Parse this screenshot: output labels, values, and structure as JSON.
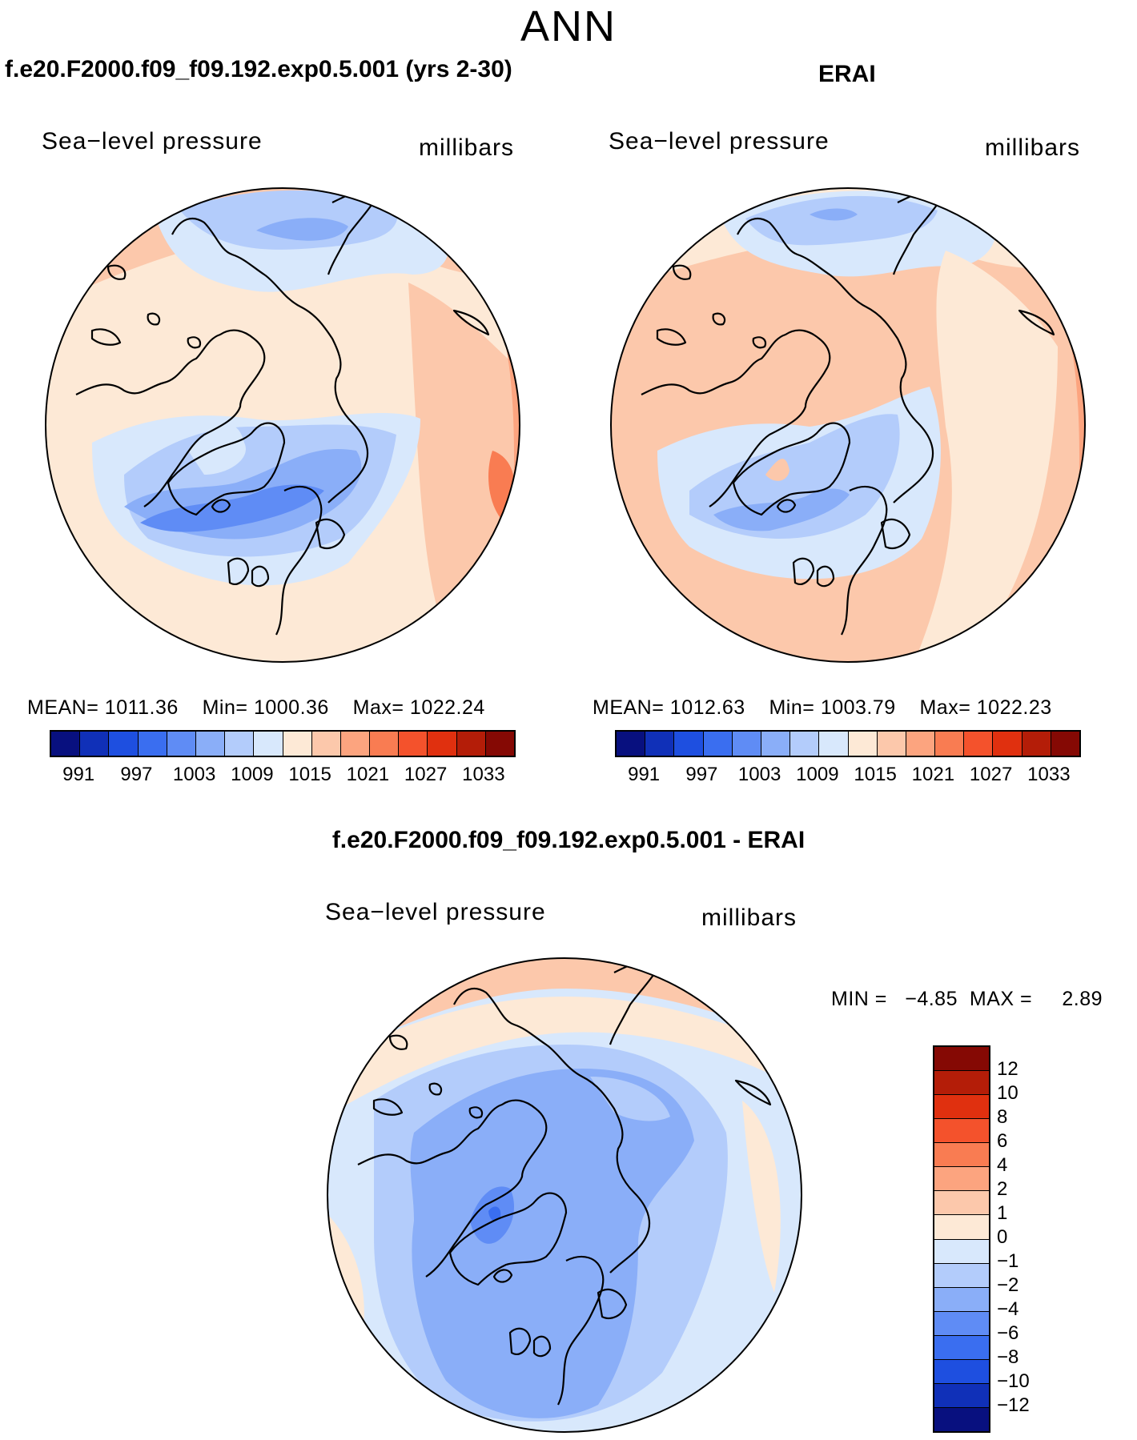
{
  "page": {
    "season": "ANN"
  },
  "panels": [
    {
      "id": "model",
      "title": "f.e20.F2000.f09_f09.192.exp0.5.001 (yrs 2-30)",
      "variable": "Sea−level pressure",
      "units": "millibars",
      "stats": {
        "mean_label": "MEAN=",
        "mean": "1011.36",
        "min_label": "Min=",
        "min": "1000.36",
        "max_label": "Max=",
        "max": "1022.24"
      }
    },
    {
      "id": "obs",
      "title": "ERAI",
      "variable": "Sea−level pressure",
      "units": "millibars",
      "stats": {
        "mean_label": "MEAN=",
        "mean": "1012.63",
        "min_label": "Min=",
        "min": "1003.79",
        "max_label": "Max=",
        "max": "1022.23"
      }
    },
    {
      "id": "diff",
      "title": "f.e20.F2000.f09_f09.192.exp0.5.001 - ERAI",
      "variable": "Sea−level pressure",
      "units": "millibars",
      "stats": {
        "min_label": "MIN =",
        "min": "−4.85",
        "max_label": "MAX =",
        "max": "2.89"
      }
    }
  ],
  "colorbar_abs": {
    "colors": [
      "#08107f",
      "#1030b8",
      "#1e4fe0",
      "#3a6ef0",
      "#5f8cf5",
      "#8aaef8",
      "#b3ccfb",
      "#d8e8fc",
      "#fde9d6",
      "#fcc8ab",
      "#fca47f",
      "#f97c52",
      "#f4522c",
      "#e0300f",
      "#b41d08",
      "#850904"
    ],
    "labels": [
      "991",
      "997",
      "1003",
      "1009",
      "1015",
      "1021",
      "1027",
      "1033"
    ]
  },
  "colorbar_diff": {
    "colors": [
      "#850904",
      "#b41d08",
      "#e0300f",
      "#f4522c",
      "#f97c52",
      "#fca47f",
      "#fcc8ab",
      "#fde9d6",
      "#d8e8fc",
      "#b3ccfb",
      "#8aaef8",
      "#5f8cf5",
      "#3a6ef0",
      "#1e4fe0",
      "#1030b8",
      "#08107f"
    ],
    "labels": [
      "12",
      "10",
      "8",
      "6",
      "4",
      "2",
      "1",
      "0",
      "−1",
      "−2",
      "−4",
      "−6",
      "−8",
      "−10",
      "−12"
    ]
  }
}
